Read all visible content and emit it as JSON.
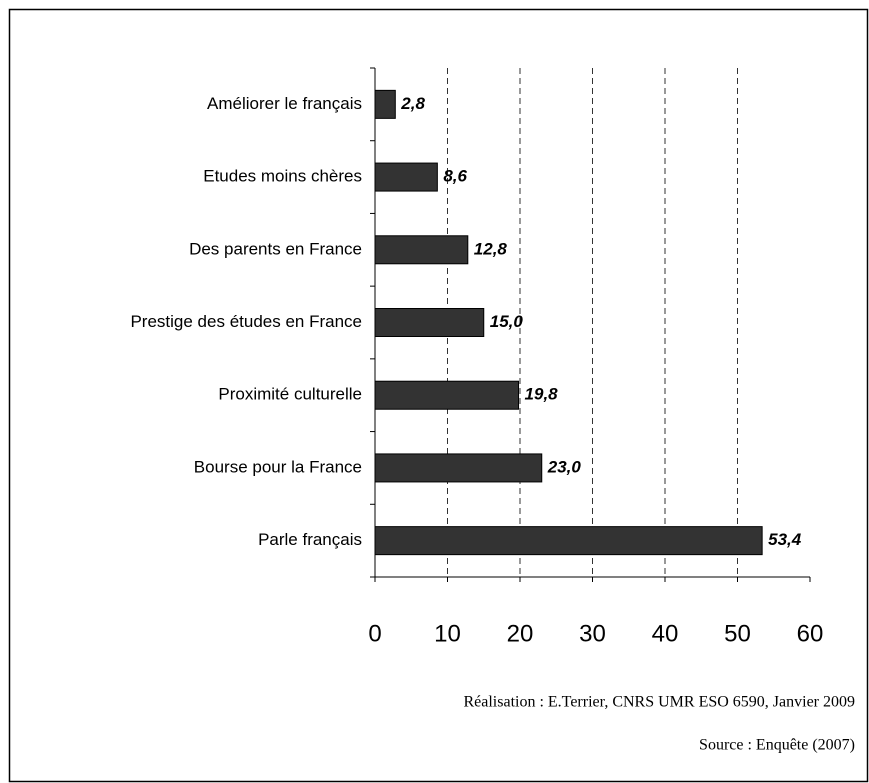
{
  "chart_data": {
    "type": "barh",
    "categories": [
      "Améliorer le français",
      "Etudes moins chères",
      "Des parents en France",
      "Prestige des études en France",
      "Proximité culturelle",
      "Bourse pour la France",
      "Parle français"
    ],
    "values": [
      2.8,
      8.6,
      12.8,
      15.0,
      19.8,
      23.0,
      53.4
    ],
    "value_labels": [
      "2,8",
      "8,6",
      "12,8",
      "15,0",
      "19,8",
      "23,0",
      "53,4"
    ],
    "color": "#333333",
    "xlim": [
      0,
      60
    ],
    "xticks": [
      0,
      10,
      20,
      30,
      40,
      50,
      60
    ],
    "grid": true,
    "annotations": [
      "Réalisation : E.Terrier, CNRS UMR ESO 6590, Janvier 2009",
      "Source : Enquête (2007)"
    ]
  }
}
